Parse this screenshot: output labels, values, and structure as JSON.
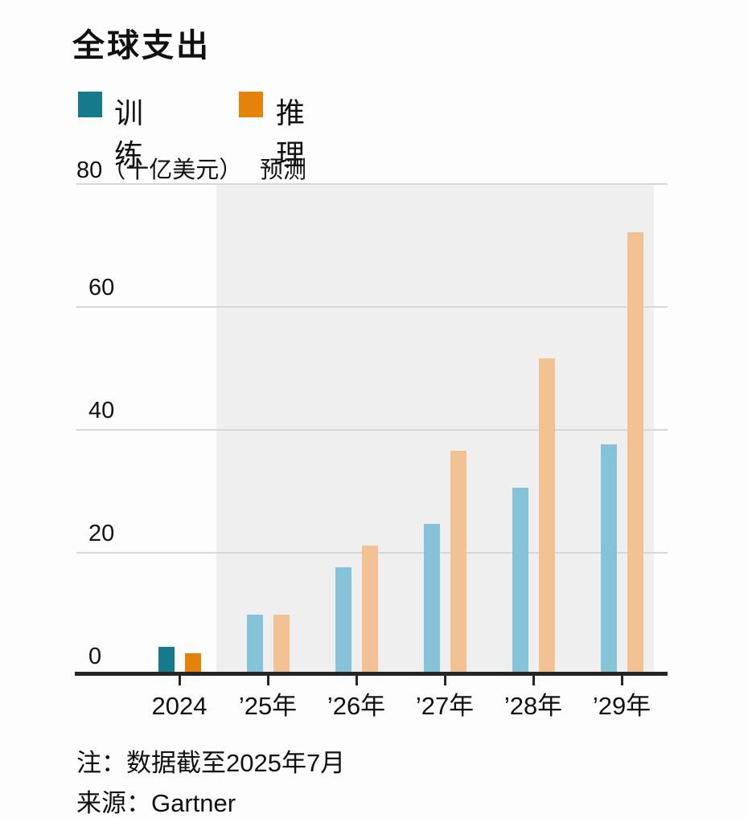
{
  "title": "全球支出",
  "legend": [
    {
      "label": "训练",
      "color": "#147a8c"
    },
    {
      "label": "推理",
      "color": "#e5820a"
    }
  ],
  "axis_header": {
    "max_tick": "80",
    "unit": "（十亿美元）",
    "forecast": "预测"
  },
  "chart_data": {
    "type": "bar",
    "title": "全球支出",
    "xlabel": "",
    "ylabel": "十亿美元",
    "ylim": [
      0,
      80
    ],
    "yticks": [
      0,
      20,
      40,
      60,
      80
    ],
    "grid": true,
    "legend_position": "top",
    "categories": [
      "2024",
      "’25年",
      "’26年",
      "’27年",
      "’28年",
      "’29年"
    ],
    "series": [
      {
        "name": "训练",
        "values": [
          4,
          9.3,
          17,
          24,
          30,
          37
        ]
      },
      {
        "name": "推理",
        "values": [
          3,
          9.3,
          20.5,
          36,
          51,
          71.5
        ]
      }
    ],
    "forecast_from_index": 1,
    "annotations": [
      "预测"
    ]
  },
  "notes": {
    "note": "注：数据截至2025年7月",
    "source": "来源：Gartner"
  },
  "colors": {
    "train_actual": "#147a8c",
    "train_forecast": "#85c4d8",
    "inference_actual": "#e5820a",
    "inference_forecast": "#f2c194",
    "forecast_shade": "#efeff0",
    "gridline": "#d7d7d7",
    "axis": "#262626",
    "text": "#111111"
  }
}
